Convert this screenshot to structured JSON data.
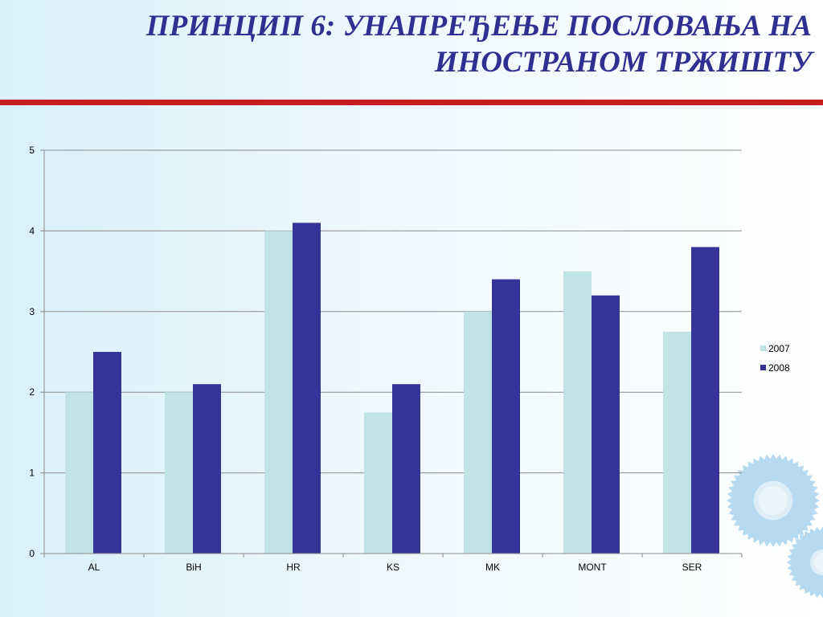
{
  "slide": {
    "title_line1": "ПРИНЦИП 6: УНАПРЕЂЕЊЕ ПОСЛОВАЊА НА",
    "title_line2": "ИНОСТРАНОМ ТРЖИШТУ"
  },
  "colors": {
    "title": "#2e3192",
    "accent_rule": "#c41e1e",
    "gear": "#a9d3ec"
  },
  "chart_data": {
    "type": "bar",
    "categories": [
      "AL",
      "BiH",
      "HR",
      "KS",
      "MK",
      "MONT",
      "SER"
    ],
    "series": [
      {
        "name": "2007",
        "color": "#bfe3e6",
        "values": [
          2,
          2,
          4,
          1.75,
          3,
          3.5,
          2.75
        ]
      },
      {
        "name": "2008",
        "color": "#343499",
        "values": [
          2.5,
          2.1,
          4.1,
          2.1,
          3.4,
          3.2,
          3.8
        ]
      }
    ],
    "ylim": [
      0,
      5
    ],
    "yticks": [
      "0",
      "1",
      "2",
      "3",
      "4",
      "5"
    ],
    "grid": true,
    "legend": "right"
  }
}
